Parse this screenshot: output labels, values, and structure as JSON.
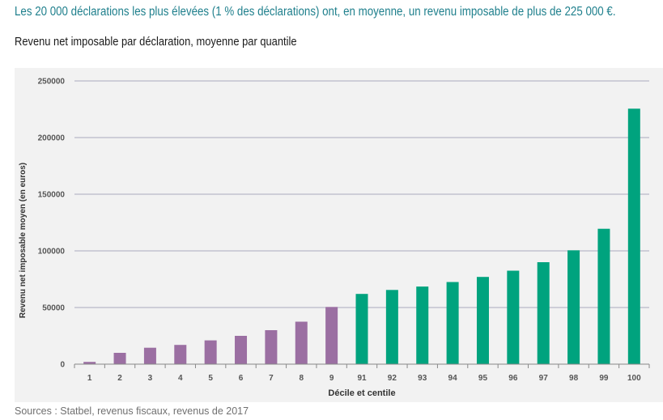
{
  "headline": "Les 20 000 déclarations les plus élevées (1 % des déclarations) ont, en moyenne, un revenu imposable de plus de 225 000 €.",
  "source": "Sources : Statbel, revenus fiscaux, revenus de 2017",
  "colors": {
    "headline": "#1e7f8c",
    "deciles": "#9b6fa2",
    "centiles": "#00a37e",
    "panel_background": "#f2f2f2",
    "gridline": "#a9a9bf"
  },
  "chart_data": {
    "type": "bar",
    "title": "Revenu net imposable par déclaration, moyenne par quantile",
    "xlabel": "Décile et centile",
    "ylabel": "Revenu net imposable moyen (en euros)",
    "ylim": [
      0,
      250000
    ],
    "yticks": [
      "0",
      "50000",
      "100000",
      "150000",
      "200000",
      "250000"
    ],
    "grid": true,
    "categories": [
      "1",
      "2",
      "3",
      "4",
      "5",
      "6",
      "7",
      "8",
      "9",
      "91",
      "92",
      "93",
      "94",
      "95",
      "96",
      "97",
      "98",
      "99",
      "100"
    ],
    "values": [
      2000,
      10000,
      14500,
      17000,
      21000,
      25000,
      30000,
      37500,
      50500,
      62000,
      65500,
      68500,
      72500,
      77000,
      82500,
      90000,
      100500,
      119500,
      225500
    ],
    "groups": [
      "decile",
      "decile",
      "decile",
      "decile",
      "decile",
      "decile",
      "decile",
      "decile",
      "decile",
      "centile",
      "centile",
      "centile",
      "centile",
      "centile",
      "centile",
      "centile",
      "centile",
      "centile",
      "centile"
    ]
  }
}
